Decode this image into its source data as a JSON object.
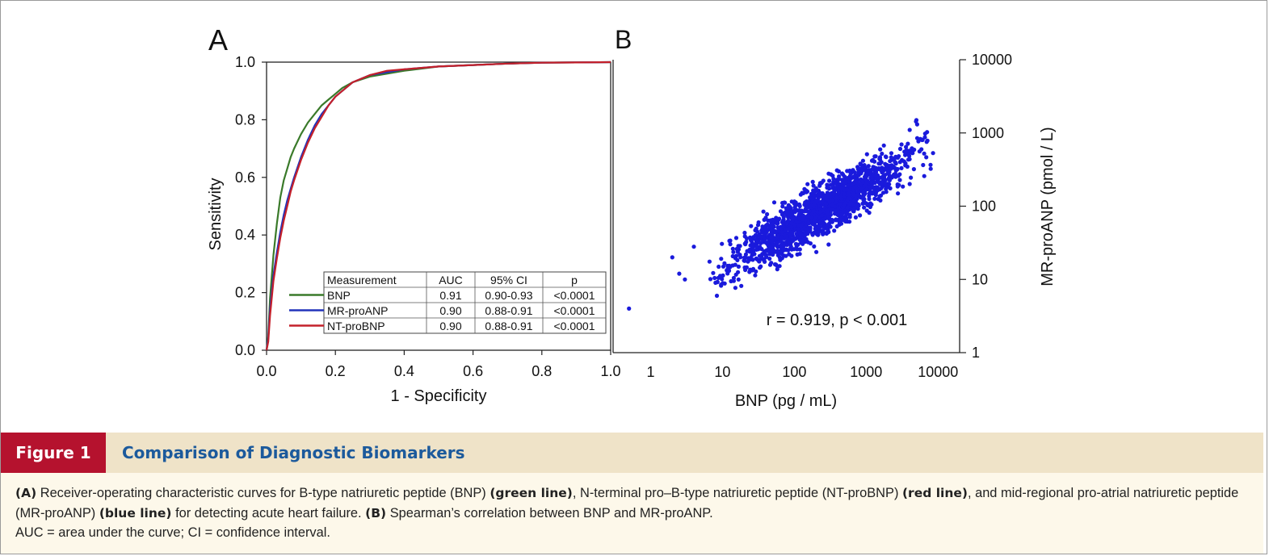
{
  "chart_data": [
    {
      "type": "line",
      "panel": "A",
      "xlabel": "1 - Specificity",
      "ylabel": "Sensitivity",
      "xlim": [
        0,
        1
      ],
      "ylim": [
        0,
        1
      ],
      "xticks": [
        "0.0",
        "0.2",
        "0.4",
        "0.6",
        "0.8",
        "1.0"
      ],
      "yticks": [
        "0.0",
        "0.2",
        "0.4",
        "0.6",
        "0.8",
        "1.0"
      ],
      "series": [
        {
          "name": "BNP",
          "color": "#3a7a2a",
          "x": [
            0,
            0.005,
            0.01,
            0.02,
            0.03,
            0.04,
            0.05,
            0.06,
            0.07,
            0.08,
            0.1,
            0.12,
            0.14,
            0.16,
            0.18,
            0.2,
            0.22,
            0.25,
            0.3,
            0.35,
            0.4,
            0.5,
            0.6,
            0.7,
            0.8,
            0.9,
            1.0
          ],
          "y": [
            0,
            0.05,
            0.18,
            0.33,
            0.44,
            0.53,
            0.59,
            0.63,
            0.67,
            0.7,
            0.75,
            0.79,
            0.82,
            0.85,
            0.87,
            0.89,
            0.91,
            0.93,
            0.95,
            0.96,
            0.97,
            0.985,
            0.99,
            0.995,
            0.998,
            0.999,
            1.0
          ]
        },
        {
          "name": "MR-proANP",
          "color": "#2233bb",
          "x": [
            0,
            0.005,
            0.01,
            0.02,
            0.03,
            0.04,
            0.05,
            0.06,
            0.07,
            0.08,
            0.1,
            0.12,
            0.14,
            0.16,
            0.18,
            0.2,
            0.22,
            0.25,
            0.3,
            0.35,
            0.4,
            0.5,
            0.6,
            0.7,
            0.8,
            0.9,
            1.0
          ],
          "y": [
            0,
            0.04,
            0.14,
            0.26,
            0.34,
            0.41,
            0.47,
            0.52,
            0.56,
            0.6,
            0.67,
            0.73,
            0.78,
            0.82,
            0.85,
            0.88,
            0.9,
            0.93,
            0.955,
            0.965,
            0.975,
            0.985,
            0.99,
            0.995,
            0.998,
            0.999,
            1.0
          ]
        },
        {
          "name": "NT-proBNP",
          "color": "#c4202a",
          "x": [
            0,
            0.005,
            0.01,
            0.02,
            0.03,
            0.04,
            0.05,
            0.06,
            0.07,
            0.08,
            0.1,
            0.12,
            0.14,
            0.16,
            0.18,
            0.2,
            0.22,
            0.25,
            0.3,
            0.35,
            0.4,
            0.5,
            0.6,
            0.7,
            0.8,
            0.9,
            1.0
          ],
          "y": [
            0,
            0.03,
            0.12,
            0.24,
            0.32,
            0.39,
            0.45,
            0.5,
            0.55,
            0.59,
            0.66,
            0.72,
            0.77,
            0.81,
            0.85,
            0.88,
            0.9,
            0.93,
            0.955,
            0.97,
            0.975,
            0.985,
            0.99,
            0.995,
            0.998,
            0.999,
            1.0
          ]
        }
      ],
      "legend_table": {
        "headers": [
          "Measurement",
          "AUC",
          "95% CI",
          "p"
        ],
        "rows": [
          [
            "BNP",
            "0.91",
            "0.90-0.93",
            "<0.0001"
          ],
          [
            "MR-proANP",
            "0.90",
            "0.88-0.91",
            "<0.0001"
          ],
          [
            "NT-proBNP",
            "0.90",
            "0.88-0.91",
            "<0.0001"
          ]
        ],
        "position": "bottom-right"
      }
    },
    {
      "type": "scatter",
      "panel": "B",
      "xlabel": "BNP (pg / mL)",
      "ylabel": "MR-proANP (pmol / L)",
      "xscale": "log",
      "yscale": "log",
      "xlim": [
        0.3,
        20000
      ],
      "ylim": [
        1,
        10000
      ],
      "xticks": [
        "1",
        "10",
        "100",
        "1000",
        "10000"
      ],
      "yticks": [
        "1",
        "10",
        "100",
        "1000",
        "10000"
      ],
      "point_color": "#1a1adc",
      "n_points": 1600,
      "fit": {
        "intercept_log10": 0.58,
        "slope": 0.58,
        "scatter_sd_log10": 0.17
      },
      "outliers": [
        [
          0.5,
          4
        ],
        [
          2,
          20
        ],
        [
          3,
          10
        ],
        [
          4,
          28
        ],
        [
          2.5,
          12
        ],
        [
          300,
          30
        ],
        [
          8,
          9
        ],
        [
          5000,
          1500
        ],
        [
          6000,
          800
        ]
      ],
      "annotation": "r = 0.919,  p < 0.001",
      "annotation_position": "bottom-right"
    }
  ],
  "figure": {
    "panel_a_label": "A",
    "panel_b_label": "B",
    "label": "Figure 1",
    "title": "Comparison of Diagnostic Biomarkers",
    "caption": {
      "a_tag": "(A)",
      "text1": " Receiver-operating characteristic curves for B-type natriuretic peptide (BNP) ",
      "green": "(green line)",
      "text2": ", N-terminal pro–B-type natriuretic peptide (NT-proBNP) ",
      "red": "(red line)",
      "text3": ", and mid-regional pro-atrial natriuretic peptide (MR-proANP) ",
      "blue": "(blue line)",
      "text4": " for detecting acute heart failure. ",
      "b_tag": "(B)",
      "text5": " Spearman’s correlation between BNP and MR-proANP.",
      "text6": "AUC = area under the curve; CI = confidence interval."
    }
  }
}
